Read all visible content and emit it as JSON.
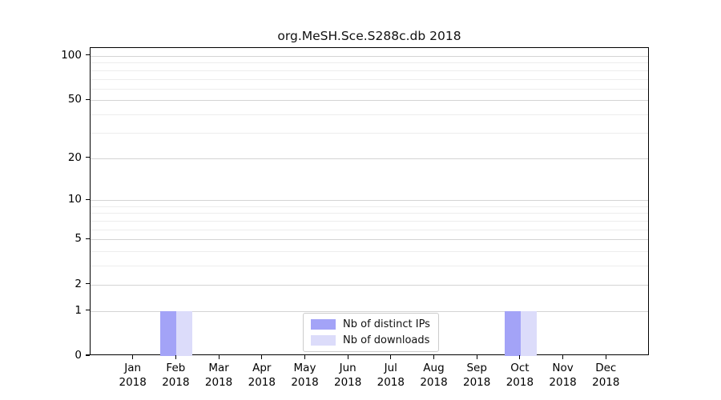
{
  "chart_data": {
    "type": "bar",
    "title": "org.MeSH.Sce.S288c.db 2018",
    "categories": [
      "Jan",
      "Feb",
      "Mar",
      "Apr",
      "May",
      "Jun",
      "Jul",
      "Aug",
      "Sep",
      "Oct",
      "Nov",
      "Dec"
    ],
    "year_label": "2018",
    "series": [
      {
        "name": "Nb of distinct IPs",
        "color": "#a3a3f7",
        "values": [
          0,
          1,
          0,
          0,
          0,
          0,
          0,
          0,
          0,
          1,
          0,
          0
        ]
      },
      {
        "name": "Nb of downloads",
        "color": "#dcdcfa",
        "values": [
          0,
          1,
          0,
          0,
          0,
          0,
          0,
          0,
          0,
          1,
          0,
          0
        ]
      }
    ],
    "y_axis": {
      "scale": "log1p",
      "ticks": [
        0,
        1,
        2,
        5,
        10,
        20,
        50,
        100
      ],
      "minor_gridlines": [
        3,
        4,
        6,
        7,
        8,
        9,
        30,
        40,
        60,
        70,
        80,
        90
      ],
      "range_top": 113
    },
    "xlabel": "",
    "ylabel": "",
    "grid": "horizontal",
    "legend_position": "lower center"
  },
  "colors": {
    "major_grid": "#d4d4d4",
    "minor_grid": "#ededed",
    "axis": "#000000",
    "background": "#ffffff",
    "legend_border": "#cccccc"
  }
}
